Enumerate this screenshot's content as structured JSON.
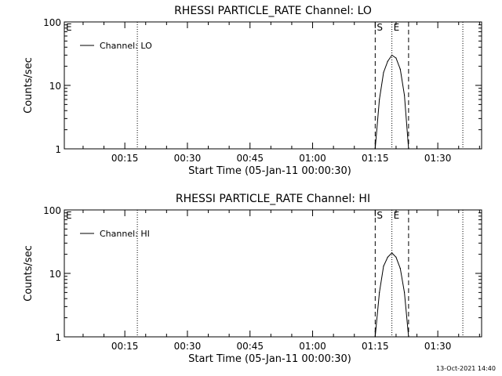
{
  "footer": {
    "timestamp": "13-Oct-2021 14:40"
  },
  "chart_data": [
    {
      "type": "line",
      "title": "RHESSI PARTICLE_RATE Channel: LO",
      "xlabel": "Start Time (05-Jan-11 00:00:30)",
      "ylabel": "Counts/sec",
      "x_ticks": [
        "00:15",
        "00:30",
        "00:45",
        "01:00",
        "01:15",
        "01:30"
      ],
      "y_ticks": [
        "1",
        "10",
        "100"
      ],
      "y_scale": "log",
      "ylim": [
        1,
        100
      ],
      "xlim": [
        "00:00:30",
        "01:40:30"
      ],
      "legend": {
        "placement": "top-left"
      },
      "markers": {
        "E_left": "E",
        "S": "S",
        "E": "E",
        "dashed_lines": [
          "01:15",
          "01:23"
        ],
        "dotted_lines": [
          "00:18",
          "01:19",
          "01:36"
        ]
      },
      "series": [
        {
          "name": "Channel: LO",
          "x": [
            "01:15",
            "01:16",
            "01:17",
            "01:18",
            "01:19",
            "01:20",
            "01:21",
            "01:22",
            "01:23"
          ],
          "y": [
            1,
            6,
            16,
            24,
            30,
            27,
            18,
            7,
            1
          ]
        }
      ]
    },
    {
      "type": "line",
      "title": "RHESSI PARTICLE_RATE Channel: HI",
      "xlabel": "Start Time (05-Jan-11 00:00:30)",
      "ylabel": "Counts/sec",
      "x_ticks": [
        "00:15",
        "00:30",
        "00:45",
        "01:00",
        "01:15",
        "01:30"
      ],
      "y_ticks": [
        "1",
        "10",
        "100"
      ],
      "y_scale": "log",
      "ylim": [
        1,
        100
      ],
      "xlim": [
        "00:00:30",
        "01:40:30"
      ],
      "legend": {
        "placement": "top-left"
      },
      "markers": {
        "E_left": "E",
        "S": "S",
        "E": "E",
        "dashed_lines": [
          "01:15",
          "01:23"
        ],
        "dotted_lines": [
          "00:18",
          "01:19",
          "01:36"
        ]
      },
      "series": [
        {
          "name": "Channel: HI",
          "x": [
            "01:15",
            "01:16",
            "01:17",
            "01:18",
            "01:19",
            "01:20",
            "01:21",
            "01:22",
            "01:23"
          ],
          "y": [
            1,
            5,
            13,
            18,
            21,
            18,
            12,
            5,
            1
          ]
        }
      ]
    }
  ]
}
